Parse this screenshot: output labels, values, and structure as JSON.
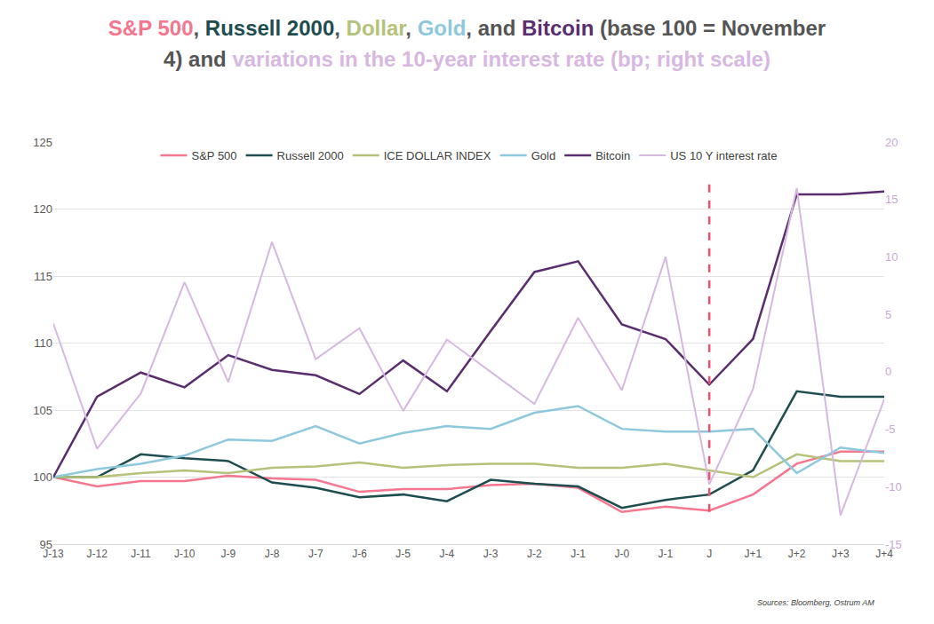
{
  "chart_data": {
    "type": "line",
    "title": [
      {
        "text": "S&P 500",
        "color": "#f4768f"
      },
      {
        "text": ", ",
        "color": "#555555"
      },
      {
        "text": "Russell 2000",
        "color": "#1e4d4f"
      },
      {
        "text": ", ",
        "color": "#555555"
      },
      {
        "text": "Dollar",
        "color": "#b5c27a"
      },
      {
        "text": ", ",
        "color": "#555555"
      },
      {
        "text": "Gold",
        "color": "#8ec8dc"
      },
      {
        "text": ", and ",
        "color": "#555555"
      },
      {
        "text": "Bitcoin",
        "color": "#5a2d6e"
      },
      {
        "text": " (base 100 = November 4) and ",
        "color": "#555555"
      },
      {
        "text": "variations in the 10-year interest rate (bp; right scale)",
        "color": "#d7b8e0"
      }
    ],
    "source": "Sources: Bloomberg, Ostrum AM",
    "categories": [
      "J-13",
      "J-12",
      "J-11",
      "J-10",
      "J-9",
      "J-8",
      "J-7",
      "J-6",
      "J-5",
      "J-4",
      "J-3",
      "J-2",
      "J-1",
      "J-0",
      "J-1",
      "J",
      "J+1",
      "J+2",
      "J+3",
      "J+4"
    ],
    "series": [
      {
        "name": "S&P 500",
        "color": "#f4768f",
        "values": [
          100,
          99.3,
          99.7,
          99.7,
          100.1,
          99.9,
          99.8,
          98.9,
          99.1,
          99.1,
          99.4,
          99.5,
          99.2,
          97.4,
          97.8,
          97.5,
          98.7,
          101.0,
          101.9,
          101.9
        ]
      },
      {
        "name": "Russell 2000",
        "color": "#1e4d4f",
        "values": [
          100,
          100.0,
          101.7,
          101.4,
          101.2,
          99.6,
          99.2,
          98.5,
          98.7,
          98.2,
          99.8,
          99.5,
          99.3,
          97.7,
          98.3,
          98.7,
          100.5,
          106.4,
          106.0,
          106.0
        ]
      },
      {
        "name": "ICE DOLLAR INDEX",
        "color": "#b5c27a",
        "values": [
          100,
          100.0,
          100.3,
          100.5,
          100.3,
          100.7,
          100.8,
          101.1,
          100.7,
          100.9,
          101.0,
          101.0,
          100.7,
          100.7,
          101.0,
          100.5,
          100.0,
          101.7,
          101.2,
          101.2
        ]
      },
      {
        "name": "Gold",
        "color": "#8ec8dc",
        "values": [
          100,
          100.6,
          101.0,
          101.6,
          102.8,
          102.7,
          103.8,
          102.5,
          103.3,
          103.8,
          103.6,
          104.8,
          105.3,
          103.6,
          103.4,
          103.4,
          103.6,
          100.3,
          102.2,
          101.8
        ]
      },
      {
        "name": "Bitcoin",
        "color": "#5a2d6e",
        "values": [
          100,
          106.0,
          107.8,
          106.7,
          109.1,
          108.0,
          107.6,
          106.2,
          108.7,
          106.4,
          110.9,
          115.3,
          116.1,
          111.4,
          110.3,
          106.9,
          110.3,
          121.1,
          121.1,
          121.3
        ]
      },
      {
        "name": "US 10 Y interest rate",
        "color": "#d7b8e0",
        "axis": "y2",
        "values": [
          4.2,
          -6.7,
          -1.9,
          7.8,
          -0.9,
          11.3,
          1.1,
          3.8,
          -3.4,
          2.8,
          0.0,
          -2.8,
          4.7,
          -1.6,
          10.0,
          -9.8,
          -1.5,
          16.0,
          -12.5,
          -2.4
        ]
      }
    ],
    "ylim": [
      95,
      125
    ],
    "yticks": [
      95,
      100,
      105,
      110,
      115,
      120,
      125
    ],
    "y2lim": [
      -15,
      20
    ],
    "y2ticks": [
      -15,
      -10,
      -5,
      0,
      5,
      10,
      15,
      20
    ],
    "grid": true,
    "legend": "top",
    "vlines": [
      {
        "x": "J",
        "color": "#f0506e",
        "line_style": "dash"
      }
    ]
  }
}
